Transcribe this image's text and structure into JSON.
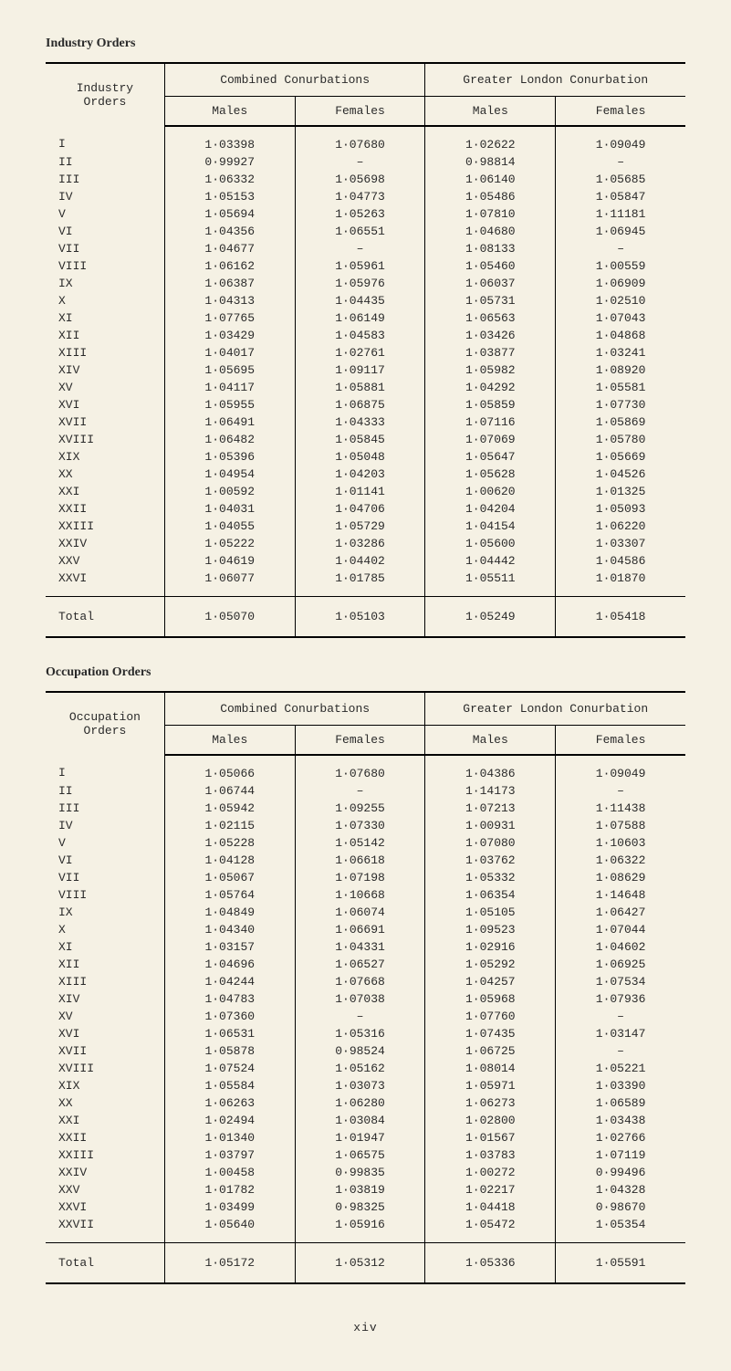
{
  "page_footer": "xiv",
  "tables": [
    {
      "section_title": "Industry Orders",
      "row_header": "Industry Orders",
      "group_headers": [
        "Combined Conurbations",
        "Greater London Conurbation"
      ],
      "sub_headers": [
        "Males",
        "Females",
        "Males",
        "Females"
      ],
      "rows": [
        {
          "label": "I",
          "v": [
            "1·03398",
            "1·07680",
            "1·02622",
            "1·09049"
          ]
        },
        {
          "label": "II",
          "v": [
            "0·99927",
            "–",
            "0·98814",
            "–"
          ]
        },
        {
          "label": "III",
          "v": [
            "1·06332",
            "1·05698",
            "1·06140",
            "1·05685"
          ]
        },
        {
          "label": "IV",
          "v": [
            "1·05153",
            "1·04773",
            "1·05486",
            "1·05847"
          ]
        },
        {
          "label": "V",
          "v": [
            "1·05694",
            "1·05263",
            "1·07810",
            "1·11181"
          ]
        },
        {
          "label": "VI",
          "v": [
            "1·04356",
            "1·06551",
            "1·04680",
            "1·06945"
          ]
        },
        {
          "label": "VII",
          "v": [
            "1·04677",
            "–",
            "1·08133",
            "–"
          ]
        },
        {
          "label": "VIII",
          "v": [
            "1·06162",
            "1·05961",
            "1·05460",
            "1·00559"
          ]
        },
        {
          "label": "IX",
          "v": [
            "1·06387",
            "1·05976",
            "1·06037",
            "1·06909"
          ]
        },
        {
          "label": "X",
          "v": [
            "1·04313",
            "1·04435",
            "1·05731",
            "1·02510"
          ]
        },
        {
          "label": "XI",
          "v": [
            "1·07765",
            "1·06149",
            "1·06563",
            "1·07043"
          ]
        },
        {
          "label": "XII",
          "v": [
            "1·03429",
            "1·04583",
            "1·03426",
            "1·04868"
          ]
        },
        {
          "label": "XIII",
          "v": [
            "1·04017",
            "1·02761",
            "1·03877",
            "1·03241"
          ]
        },
        {
          "label": "XIV",
          "v": [
            "1·05695",
            "1·09117",
            "1·05982",
            "1·08920"
          ]
        },
        {
          "label": "XV",
          "v": [
            "1·04117",
            "1·05881",
            "1·04292",
            "1·05581"
          ]
        },
        {
          "label": "XVI",
          "v": [
            "1·05955",
            "1·06875",
            "1·05859",
            "1·07730"
          ]
        },
        {
          "label": "XVII",
          "v": [
            "1·06491",
            "1·04333",
            "1·07116",
            "1·05869"
          ]
        },
        {
          "label": "XVIII",
          "v": [
            "1·06482",
            "1·05845",
            "1·07069",
            "1·05780"
          ]
        },
        {
          "label": "XIX",
          "v": [
            "1·05396",
            "1·05048",
            "1·05647",
            "1·05669"
          ]
        },
        {
          "label": "XX",
          "v": [
            "1·04954",
            "1·04203",
            "1·05628",
            "1·04526"
          ]
        },
        {
          "label": "XXI",
          "v": [
            "1·00592",
            "1·01141",
            "1·00620",
            "1·01325"
          ]
        },
        {
          "label": "XXII",
          "v": [
            "1·04031",
            "1·04706",
            "1·04204",
            "1·05093"
          ]
        },
        {
          "label": "XXIII",
          "v": [
            "1·04055",
            "1·05729",
            "1·04154",
            "1·06220"
          ]
        },
        {
          "label": "XXIV",
          "v": [
            "1·05222",
            "1·03286",
            "1·05600",
            "1·03307"
          ]
        },
        {
          "label": "XXV",
          "v": [
            "1·04619",
            "1·04402",
            "1·04442",
            "1·04586"
          ]
        },
        {
          "label": "XXVI",
          "v": [
            "1·06077",
            "1·01785",
            "1·05511",
            "1·01870"
          ]
        }
      ],
      "total": {
        "label": "Total",
        "v": [
          "1·05070",
          "1·05103",
          "1·05249",
          "1·05418"
        ]
      }
    },
    {
      "section_title": "Occupation Orders",
      "row_header": "Occupation Orders",
      "group_headers": [
        "Combined Conurbations",
        "Greater London Conurbation"
      ],
      "sub_headers": [
        "Males",
        "Females",
        "Males",
        "Females"
      ],
      "rows": [
        {
          "label": "I",
          "v": [
            "1·05066",
            "1·07680",
            "1·04386",
            "1·09049"
          ]
        },
        {
          "label": "II",
          "v": [
            "1·06744",
            "–",
            "1·14173",
            "–"
          ]
        },
        {
          "label": "III",
          "v": [
            "1·05942",
            "1·09255",
            "1·07213",
            "1·11438"
          ]
        },
        {
          "label": "IV",
          "v": [
            "1·02115",
            "1·07330",
            "1·00931",
            "1·07588"
          ]
        },
        {
          "label": "V",
          "v": [
            "1·05228",
            "1·05142",
            "1·07080",
            "1·10603"
          ]
        },
        {
          "label": "VI",
          "v": [
            "1·04128",
            "1·06618",
            "1·03762",
            "1·06322"
          ]
        },
        {
          "label": "VII",
          "v": [
            "1·05067",
            "1·07198",
            "1·05332",
            "1·08629"
          ]
        },
        {
          "label": "VIII",
          "v": [
            "1·05764",
            "1·10668",
            "1·06354",
            "1·14648"
          ]
        },
        {
          "label": "IX",
          "v": [
            "1·04849",
            "1·06074",
            "1·05105",
            "1·06427"
          ]
        },
        {
          "label": "X",
          "v": [
            "1·04340",
            "1·06691",
            "1·09523",
            "1·07044"
          ]
        },
        {
          "label": "XI",
          "v": [
            "1·03157",
            "1·04331",
            "1·02916",
            "1·04602"
          ]
        },
        {
          "label": "XII",
          "v": [
            "1·04696",
            "1·06527",
            "1·05292",
            "1·06925"
          ]
        },
        {
          "label": "XIII",
          "v": [
            "1·04244",
            "1·07668",
            "1·04257",
            "1·07534"
          ]
        },
        {
          "label": "XIV",
          "v": [
            "1·04783",
            "1·07038",
            "1·05968",
            "1·07936"
          ]
        },
        {
          "label": "XV",
          "v": [
            "1·07360",
            "–",
            "1·07760",
            "–"
          ]
        },
        {
          "label": "XVI",
          "v": [
            "1·06531",
            "1·05316",
            "1·07435",
            "1·03147"
          ]
        },
        {
          "label": "XVII",
          "v": [
            "1·05878",
            "0·98524",
            "1·06725",
            "–"
          ]
        },
        {
          "label": "XVIII",
          "v": [
            "1·07524",
            "1·05162",
            "1·08014",
            "1·05221"
          ]
        },
        {
          "label": "XIX",
          "v": [
            "1·05584",
            "1·03073",
            "1·05971",
            "1·03390"
          ]
        },
        {
          "label": "XX",
          "v": [
            "1·06263",
            "1·06280",
            "1·06273",
            "1·06589"
          ]
        },
        {
          "label": "XXI",
          "v": [
            "1·02494",
            "1·03084",
            "1·02800",
            "1·03438"
          ]
        },
        {
          "label": "XXII",
          "v": [
            "1·01340",
            "1·01947",
            "1·01567",
            "1·02766"
          ]
        },
        {
          "label": "XXIII",
          "v": [
            "1·03797",
            "1·06575",
            "1·03783",
            "1·07119"
          ]
        },
        {
          "label": "XXIV",
          "v": [
            "1·00458",
            "0·99835",
            "1·00272",
            "0·99496"
          ]
        },
        {
          "label": "XXV",
          "v": [
            "1·01782",
            "1·03819",
            "1·02217",
            "1·04328"
          ]
        },
        {
          "label": "XXVI",
          "v": [
            "1·03499",
            "0·98325",
            "1·04418",
            "0·98670"
          ]
        },
        {
          "label": "XXVII",
          "v": [
            "1·05640",
            "1·05916",
            "1·05472",
            "1·05354"
          ]
        }
      ],
      "total": {
        "label": "Total",
        "v": [
          "1·05172",
          "1·05312",
          "1·05336",
          "1·05591"
        ]
      }
    }
  ]
}
